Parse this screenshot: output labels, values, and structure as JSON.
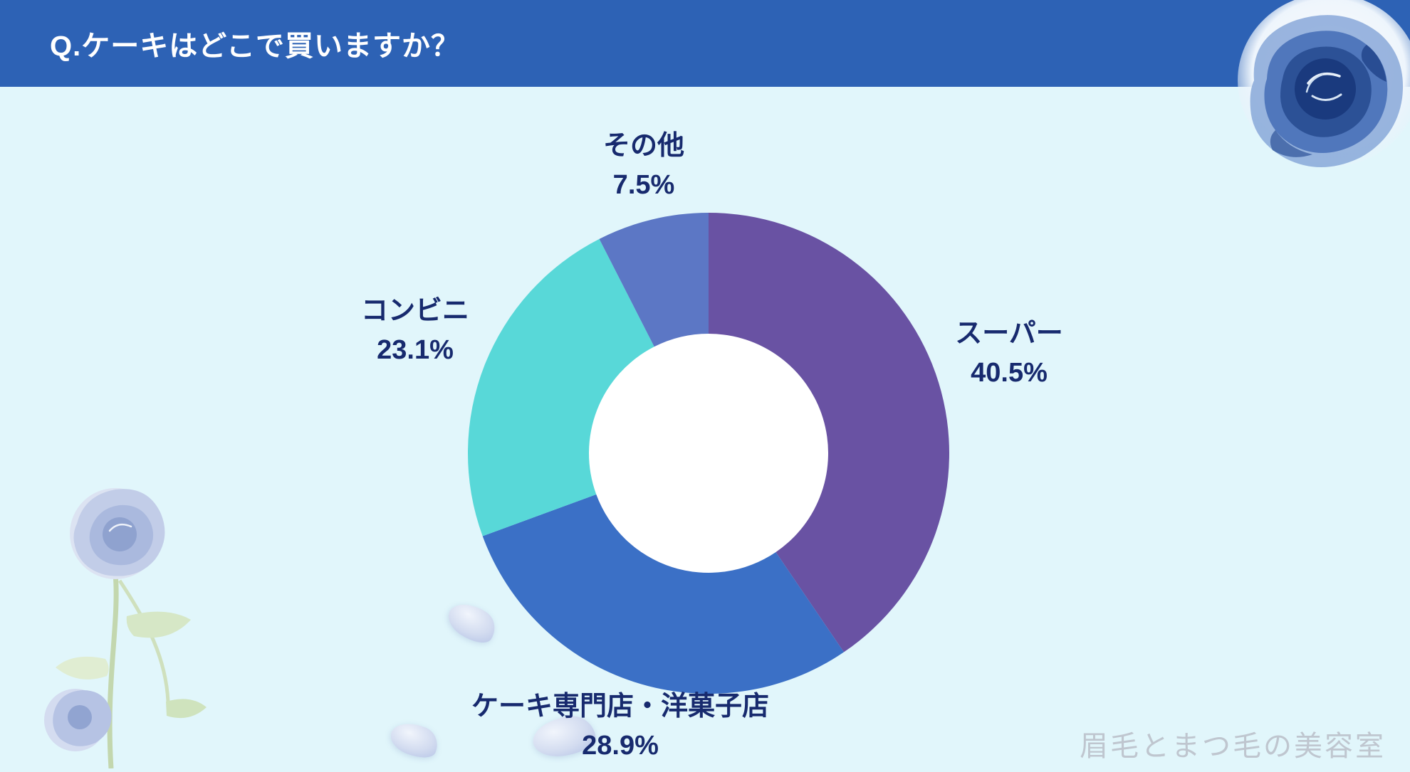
{
  "header": {
    "title": "Q.ケーキはどこで買いますか？",
    "bg_color": "#2d62b5",
    "text_color": "#ffffff"
  },
  "page": {
    "bg_color": "#e1f6fb"
  },
  "watermark": "眉毛とまつ毛の美容室",
  "decorations": {
    "top_right": "blue-watercolor-rose",
    "bottom_left": "blue-rose-with-stem-and-leaves",
    "scattered": "falling-flower-petals"
  },
  "chart_data": {
    "type": "pie",
    "donut": true,
    "hole_ratio": 0.5,
    "hole_color": "#ffffff",
    "start_angle_deg": 0,
    "direction": "clockwise",
    "title": "Q.ケーキはどこで買いますか？",
    "label_color": "#172a6e",
    "legend_position": "outside-labels",
    "segments": [
      {
        "label": "スーパー",
        "value": 40.5,
        "color": "#6952a3"
      },
      {
        "label": "ケーキ専門店・洋菓子店",
        "value": 28.9,
        "color": "#3b70c6"
      },
      {
        "label": "コンビニ",
        "value": 23.1,
        "color": "#58d8d8"
      },
      {
        "label": "その他",
        "value": 7.5,
        "color": "#5c77c5"
      }
    ]
  }
}
